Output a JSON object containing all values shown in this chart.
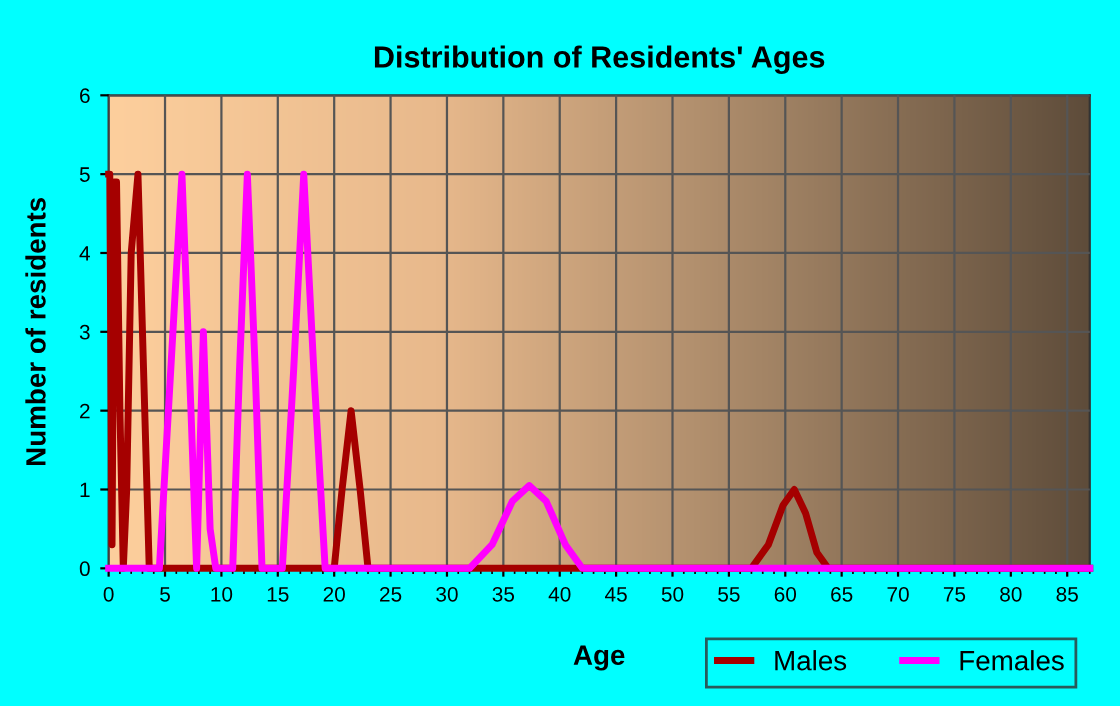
{
  "chart_data": {
    "type": "line",
    "title": "Distribution of Residents' Ages",
    "xlabel": "Age",
    "ylabel": "Number of residents",
    "xlim": [
      0,
      87
    ],
    "xticks": [
      0,
      5,
      10,
      15,
      20,
      25,
      30,
      35,
      40,
      45,
      50,
      55,
      60,
      65,
      70,
      75,
      80,
      85
    ],
    "ylim": [
      0,
      6
    ],
    "yticks": [
      0,
      1,
      2,
      3,
      4,
      5,
      6
    ],
    "grid": true,
    "legend": "bottom right",
    "marker": "none",
    "line_style": "solid",
    "series": [
      {
        "name": "Males",
        "color": "#a50000",
        "x": [
          0,
          0.1,
          0.3,
          0.5,
          0.7,
          1,
          1.3,
          1.6,
          2,
          2.6,
          3.2,
          3.6,
          4,
          20,
          20.7,
          21.5,
          22.3,
          23,
          57,
          58.5,
          59.8,
          60.8,
          61.8,
          62.8,
          63.8,
          87
        ],
        "values": [
          5,
          5,
          0.3,
          4.9,
          4.9,
          2,
          0,
          1,
          4,
          5,
          2,
          0,
          0,
          0,
          1,
          2,
          1,
          0,
          0,
          0.3,
          0.8,
          1,
          0.7,
          0.2,
          0,
          0
        ]
      },
      {
        "name": "Females",
        "color": "#ff00ff",
        "x": [
          0,
          4.5,
          5.5,
          6.5,
          7.3,
          7.8,
          8.4,
          9,
          9.5,
          11,
          11.6,
          12.3,
          13,
          13.6,
          15.4,
          16.4,
          17.3,
          18.2,
          19.2,
          32,
          34,
          35.8,
          37.3,
          38.8,
          40.5,
          42,
          87
        ],
        "values": [
          0,
          0,
          2.5,
          5,
          2,
          0,
          3,
          0.5,
          0,
          0,
          2.5,
          5,
          2.5,
          0,
          0,
          2.5,
          5,
          2.5,
          0,
          0,
          0.3,
          0.85,
          1.05,
          0.85,
          0.3,
          0,
          0
        ]
      }
    ]
  }
}
